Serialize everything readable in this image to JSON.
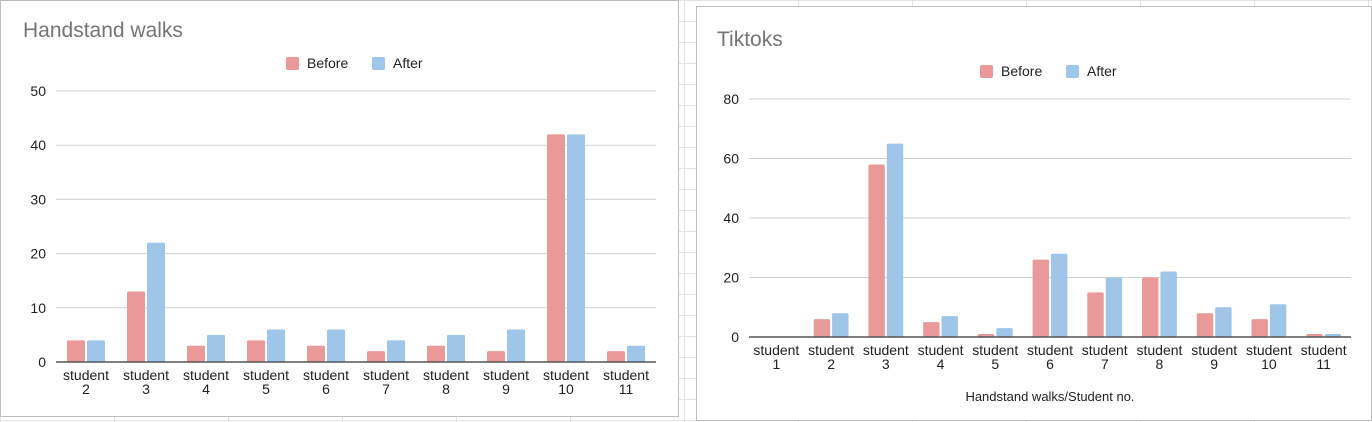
{
  "colors": {
    "before": "#ea9999",
    "after": "#9fc5e8",
    "grid": "#d0d0d0",
    "axis": "#555555",
    "title": "#757575"
  },
  "chart_data": [
    {
      "type": "bar",
      "title": "Handstand walks",
      "xlabel": "",
      "ylabel": "",
      "ylim": [
        0,
        50
      ],
      "yticks": [
        0,
        10,
        20,
        30,
        40,
        50
      ],
      "grid": true,
      "legend": "top-center",
      "categories": [
        [
          "student",
          "2"
        ],
        [
          "student",
          "3"
        ],
        [
          "student",
          "4"
        ],
        [
          "student",
          "5"
        ],
        [
          "student",
          "6"
        ],
        [
          "student",
          "7"
        ],
        [
          "student",
          "8"
        ],
        [
          "student",
          "9"
        ],
        [
          "student",
          "10"
        ],
        [
          "student",
          "11"
        ]
      ],
      "series": [
        {
          "name": "Before",
          "values": [
            4,
            13,
            3,
            4,
            3,
            2,
            3,
            2,
            42,
            2
          ]
        },
        {
          "name": "After",
          "values": [
            4,
            22,
            5,
            6,
            6,
            4,
            5,
            6,
            42,
            3
          ]
        }
      ]
    },
    {
      "type": "bar",
      "title": "Tiktoks",
      "xlabel": "Handstand walks/Student no.",
      "ylabel": "",
      "ylim": [
        0,
        80
      ],
      "yticks": [
        0,
        20,
        40,
        60,
        80
      ],
      "grid": true,
      "legend": "top-center",
      "categories": [
        [
          "student",
          "1"
        ],
        [
          "student",
          "2"
        ],
        [
          "student",
          "3"
        ],
        [
          "student",
          "4"
        ],
        [
          "student",
          "5"
        ],
        [
          "student",
          "6"
        ],
        [
          "student",
          "7"
        ],
        [
          "student",
          "8"
        ],
        [
          "student",
          "9"
        ],
        [
          "student",
          "10"
        ],
        [
          "student",
          "11"
        ]
      ],
      "series": [
        {
          "name": "Before",
          "values": [
            0,
            6,
            58,
            5,
            1,
            26,
            15,
            20,
            8,
            6,
            1
          ]
        },
        {
          "name": "After",
          "values": [
            0,
            8,
            65,
            7,
            3,
            28,
            20,
            22,
            10,
            11,
            1
          ]
        }
      ]
    }
  ]
}
